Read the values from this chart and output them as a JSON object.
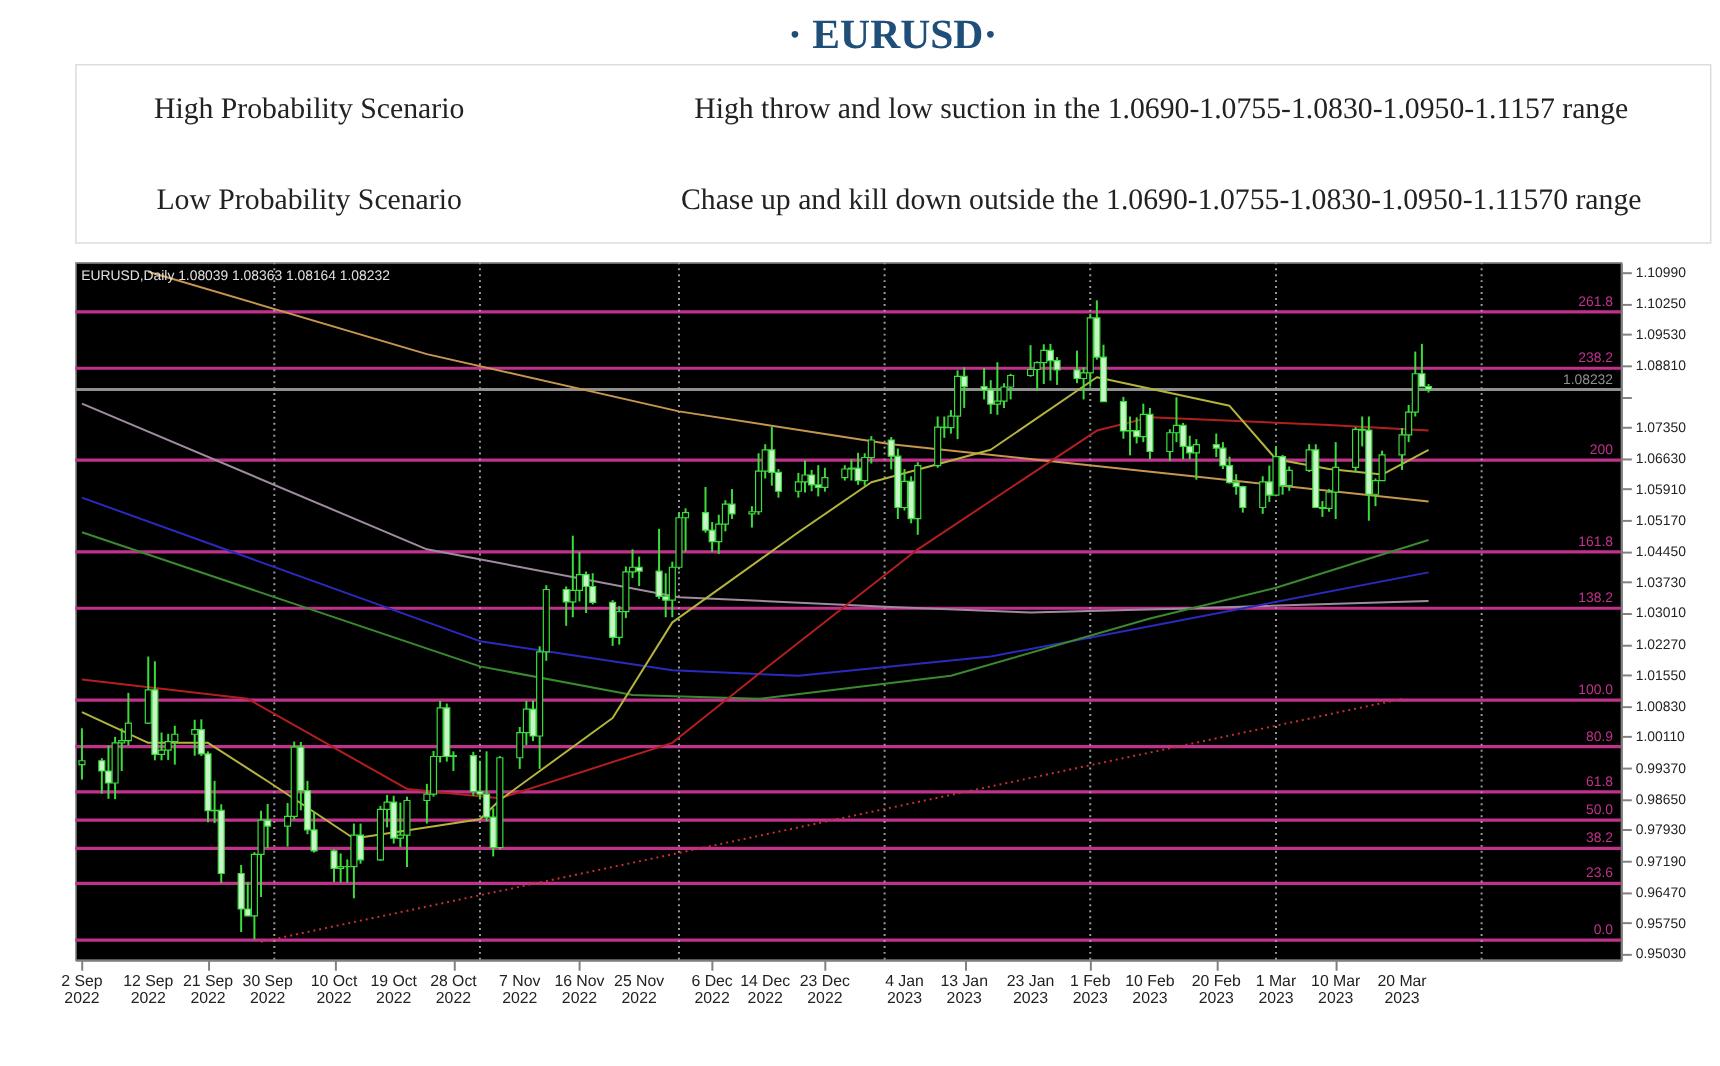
{
  "chart_data": {
    "type": "candlestick",
    "title": "· EURUSD·",
    "annotations": [
      "High Probability Scenario",
      "High throw and low suction in the 1.0690-1.0755-1.0830-1.0950-1.1157 range",
      "Low Probability Scenario",
      "Chase up and kill down outside the 1.0690-1.0755-1.0830-1.0950-1.11570 range",
      "EURUSD,Daily 1.08039 1.08363 1.08164 1.08232",
      {
        "text": "261.8",
        "y": 1.1005
      },
      {
        "text": "238.2",
        "y": 1.0873
      },
      {
        "text": "200",
        "y": 1.0658
      },
      {
        "text": "161.8",
        "y": 1.0443
      },
      {
        "text": "138.2",
        "y": 1.0311
      },
      {
        "text": "100.0",
        "y": 1.0096
      },
      {
        "text": "80.9",
        "y": 0.9987
      },
      {
        "text": "61.8",
        "y": 0.9881
      },
      {
        "text": "50.0",
        "y": 0.9815
      },
      {
        "text": "38.2",
        "y": 0.9749
      },
      {
        "text": "23.6",
        "y": 0.9667
      },
      {
        "text": "0.0",
        "y": 0.9534
      }
    ],
    "x": [
      "2022-09-02",
      "2022-09-05",
      "2022-09-06",
      "2022-09-07",
      "2022-09-08",
      "2022-09-09",
      "2022-09-12",
      "2022-09-13",
      "2022-09-14",
      "2022-09-15",
      "2022-09-16",
      "2022-09-19",
      "2022-09-20",
      "2022-09-21",
      "2022-09-22",
      "2022-09-23",
      "2022-09-26",
      "2022-09-27",
      "2022-09-28",
      "2022-09-29",
      "2022-09-30",
      "2022-10-03",
      "2022-10-04",
      "2022-10-05",
      "2022-10-06",
      "2022-10-07",
      "2022-10-10",
      "2022-10-11",
      "2022-10-12",
      "2022-10-13",
      "2022-10-14",
      "2022-10-17",
      "2022-10-18",
      "2022-10-19",
      "2022-10-20",
      "2022-10-21",
      "2022-10-24",
      "2022-10-25",
      "2022-10-26",
      "2022-10-27",
      "2022-10-28",
      "2022-10-31",
      "2022-11-01",
      "2022-11-02",
      "2022-11-03",
      "2022-11-04",
      "2022-11-07",
      "2022-11-08",
      "2022-11-09",
      "2022-11-10",
      "2022-11-11",
      "2022-11-14",
      "2022-11-15",
      "2022-11-16",
      "2022-11-17",
      "2022-11-18",
      "2022-11-21",
      "2022-11-22",
      "2022-11-23",
      "2022-11-24",
      "2022-11-25",
      "2022-11-28",
      "2022-11-29",
      "2022-11-30",
      "2022-12-01",
      "2022-12-02",
      "2022-12-05",
      "2022-12-06",
      "2022-12-07",
      "2022-12-08",
      "2022-12-09",
      "2022-12-12",
      "2022-12-13",
      "2022-12-14",
      "2022-12-15",
      "2022-12-16",
      "2022-12-19",
      "2022-12-20",
      "2022-12-21",
      "2022-12-22",
      "2022-12-23",
      "2022-12-26",
      "2022-12-27",
      "2022-12-28",
      "2022-12-29",
      "2022-12-30",
      "2023-01-02",
      "2023-01-03",
      "2023-01-04",
      "2023-01-05",
      "2023-01-06",
      "2023-01-09",
      "2023-01-10",
      "2023-01-11",
      "2023-01-12",
      "2023-01-13",
      "2023-01-16",
      "2023-01-17",
      "2023-01-18",
      "2023-01-19",
      "2023-01-20",
      "2023-01-23",
      "2023-01-24",
      "2023-01-25",
      "2023-01-26",
      "2023-01-27",
      "2023-01-30",
      "2023-01-31",
      "2023-02-01",
      "2023-02-02",
      "2023-02-03",
      "2023-02-06",
      "2023-02-07",
      "2023-02-08",
      "2023-02-09",
      "2023-02-10",
      "2023-02-13",
      "2023-02-14",
      "2023-02-15",
      "2023-02-16",
      "2023-02-17",
      "2023-02-20",
      "2023-02-21",
      "2023-02-22",
      "2023-02-23",
      "2023-02-24",
      "2023-02-27",
      "2023-02-28",
      "2023-03-01",
      "2023-03-02",
      "2023-03-03",
      "2023-03-06",
      "2023-03-07",
      "2023-03-08",
      "2023-03-09",
      "2023-03-10",
      "2023-03-13",
      "2023-03-14",
      "2023-03-15",
      "2023-03-16",
      "2023-03-17",
      "2023-03-20",
      "2023-03-21",
      "2023-03-22",
      "2023-03-23",
      "2023-03-24"
    ],
    "ohlc": [
      [
        0.9945,
        1.003,
        0.991,
        0.9954
      ],
      [
        0.9954,
        0.996,
        0.9877,
        0.993
      ],
      [
        0.993,
        0.999,
        0.9865,
        0.9902
      ],
      [
        0.9902,
        1.001,
        0.9864,
        0.9996
      ],
      [
        0.9996,
        1.003,
        0.993,
        1.0001
      ],
      [
        1.0001,
        1.0113,
        0.999,
        1.0042
      ],
      [
        1.0042,
        1.0198,
        1.004,
        1.012
      ],
      [
        1.012,
        1.0187,
        0.9955,
        0.9969
      ],
      [
        0.9969,
        1.002,
        0.9955,
        0.9979
      ],
      [
        0.9979,
        1.0017,
        0.9956,
        0.9999
      ],
      [
        0.9999,
        1.0036,
        0.9945,
        1.0016
      ],
      [
        1.0016,
        1.005,
        0.9966,
        1.0027
      ],
      [
        1.0027,
        1.0051,
        0.9965,
        0.997
      ],
      [
        0.997,
        0.9976,
        0.981,
        0.9837
      ],
      [
        0.9837,
        0.9907,
        0.9808,
        0.9838
      ],
      [
        0.9838,
        0.9852,
        0.9668,
        0.969
      ],
      [
        0.969,
        0.971,
        0.9553,
        0.9607
      ],
      [
        0.9607,
        0.967,
        0.959,
        0.9591
      ],
      [
        0.9591,
        0.974,
        0.9536,
        0.9735
      ],
      [
        0.9735,
        0.9837,
        0.9635,
        0.9815
      ],
      [
        0.9815,
        0.9853,
        0.975,
        0.9801
      ],
      [
        0.9801,
        0.9855,
        0.9753,
        0.9824
      ],
      [
        0.9824,
        0.9999,
        0.9817,
        0.9986
      ],
      [
        0.9986,
        0.9998,
        0.9838,
        0.9884
      ],
      [
        0.9884,
        0.9907,
        0.9782,
        0.9792
      ],
      [
        0.9792,
        0.9834,
        0.9739,
        0.9743
      ],
      [
        0.9743,
        0.9747,
        0.967,
        0.9702
      ],
      [
        0.9702,
        0.9737,
        0.9669,
        0.9706
      ],
      [
        0.9706,
        0.9723,
        0.9669,
        0.9706
      ],
      [
        0.9706,
        0.9807,
        0.9632,
        0.978
      ],
      [
        0.978,
        0.9807,
        0.9713,
        0.9722
      ],
      [
        0.9722,
        0.9848,
        0.972,
        0.984
      ],
      [
        0.984,
        0.9874,
        0.9798,
        0.9857
      ],
      [
        0.9857,
        0.9872,
        0.976,
        0.9773
      ],
      [
        0.9773,
        0.9856,
        0.9752,
        0.978
      ],
      [
        0.978,
        0.987,
        0.9705,
        0.9861
      ],
      [
        0.9861,
        0.99,
        0.9807,
        0.9876
      ],
      [
        0.9876,
        0.9977,
        0.987,
        0.9964
      ],
      [
        0.9964,
        1.0094,
        0.995,
        1.0078
      ],
      [
        1.0078,
        1.0088,
        0.9952,
        0.9964
      ],
      [
        0.9964,
        0.9976,
        0.993,
        0.9966
      ],
      [
        0.9966,
        0.9975,
        0.9872,
        0.9882
      ],
      [
        0.9882,
        0.9954,
        0.9864,
        0.9876
      ],
      [
        0.9876,
        0.9976,
        0.9812,
        0.9822
      ],
      [
        0.9822,
        0.9843,
        0.973,
        0.9751
      ],
      [
        0.9751,
        0.9965,
        0.9746,
        0.9961
      ],
      [
        0.9961,
        1.0033,
        0.9935,
        1.002
      ],
      [
        1.002,
        1.0094,
        0.9991,
        1.0075
      ],
      [
        1.0075,
        1.0095,
        1.0,
        1.0012
      ],
      [
        1.0012,
        1.0222,
        0.9935,
        1.0209
      ],
      [
        1.0209,
        1.0365,
        1.0188,
        1.0355
      ],
      [
        1.0355,
        1.0362,
        1.027,
        1.0326
      ],
      [
        1.0326,
        1.0481,
        1.029,
        1.0353
      ],
      [
        1.0353,
        1.0443,
        1.0327,
        1.039
      ],
      [
        1.039,
        1.0397,
        1.03,
        1.0362
      ],
      [
        1.0362,
        1.0393,
        1.032,
        1.0325
      ],
      [
        1.0325,
        1.033,
        1.0223,
        1.0243
      ],
      [
        1.0243,
        1.0316,
        1.0226,
        1.0303
      ],
      [
        1.0303,
        1.0409,
        1.0288,
        1.0396
      ],
      [
        1.0396,
        1.0449,
        1.0382,
        1.0407
      ],
      [
        1.0407,
        1.0432,
        1.0363,
        1.0398
      ],
      [
        1.0398,
        1.0497,
        1.0333,
        1.0339
      ],
      [
        1.0339,
        1.0393,
        1.029,
        1.033
      ],
      [
        1.033,
        1.042,
        1.029,
        1.0407
      ],
      [
        1.0407,
        1.0534,
        1.0402,
        1.0523
      ],
      [
        1.0523,
        1.0545,
        1.0444,
        1.0535
      ],
      [
        1.0535,
        1.0595,
        1.0488,
        1.0494
      ],
      [
        1.0494,
        1.0513,
        1.0443,
        1.0467
      ],
      [
        1.0467,
        1.053,
        1.0438,
        1.0508
      ],
      [
        1.0508,
        1.0564,
        1.0491,
        1.0555
      ],
      [
        1.0555,
        1.059,
        1.052,
        1.0532
      ],
      [
        1.0532,
        1.055,
        1.05,
        1.0537
      ],
      [
        1.0537,
        1.0674,
        1.053,
        1.0632
      ],
      [
        1.0632,
        1.0695,
        1.0615,
        1.0682
      ],
      [
        1.0682,
        1.0736,
        1.0598,
        1.0629
      ],
      [
        1.0629,
        1.0637,
        1.057,
        1.0585
      ],
      [
        1.0585,
        1.0628,
        1.057,
        1.0607
      ],
      [
        1.0607,
        1.0657,
        1.0582,
        1.0623
      ],
      [
        1.0623,
        1.0635,
        1.0585,
        1.06
      ],
      [
        1.06,
        1.0646,
        1.0573,
        1.0594
      ],
      [
        1.0594,
        1.064,
        1.0584,
        1.0617
      ],
      [
        1.0617,
        1.0646,
        1.061,
        1.0637
      ],
      [
        1.0637,
        1.066,
        1.061,
        1.0639
      ],
      [
        1.0639,
        1.0675,
        1.06,
        1.061
      ],
      [
        1.061,
        1.0674,
        1.0598,
        1.0664
      ],
      [
        1.0664,
        1.0714,
        1.065,
        1.0705
      ],
      [
        1.0705,
        1.0712,
        1.0636,
        1.0667
      ],
      [
        1.0667,
        1.0685,
        1.052,
        1.0547
      ],
      [
        1.0547,
        1.0637,
        1.054,
        1.0608
      ],
      [
        1.0608,
        1.062,
        1.051,
        1.0521
      ],
      [
        1.0521,
        1.0653,
        1.0483,
        1.0645
      ],
      [
        1.0645,
        1.076,
        1.064,
        1.0735
      ],
      [
        1.0735,
        1.076,
        1.071,
        1.0734
      ],
      [
        1.0734,
        1.0775,
        1.072,
        1.0761
      ],
      [
        1.0761,
        1.0868,
        1.0707,
        1.0854
      ],
      [
        1.0854,
        1.0875,
        1.078,
        1.083
      ],
      [
        1.083,
        1.0874,
        1.08,
        1.0822
      ],
      [
        1.0822,
        1.0845,
        1.0766,
        1.0789
      ],
      [
        1.0789,
        1.0887,
        1.0764,
        1.0796
      ],
      [
        1.0796,
        1.0838,
        1.078,
        1.0829
      ],
      [
        1.0829,
        1.086,
        1.08,
        1.0856
      ],
      [
        1.0856,
        1.0927,
        1.0853,
        1.087
      ],
      [
        1.087,
        1.0889,
        1.082,
        1.0886
      ],
      [
        1.0886,
        1.0929,
        1.0836,
        1.0915
      ],
      [
        1.0915,
        1.093,
        1.0844,
        1.0891
      ],
      [
        1.0891,
        1.0899,
        1.0834,
        1.0869
      ],
      [
        1.0869,
        1.0914,
        1.0838,
        1.0849
      ],
      [
        1.0849,
        1.0875,
        1.08,
        1.0862
      ],
      [
        1.0862,
        1.1,
        1.083,
        1.0991
      ],
      [
        1.0991,
        1.1032,
        1.0893,
        1.0899
      ],
      [
        1.0899,
        1.0928,
        1.0795,
        1.0795
      ],
      [
        1.0795,
        1.0806,
        1.0708,
        1.0726
      ],
      [
        1.0726,
        1.076,
        1.0669,
        1.0727
      ],
      [
        1.0727,
        1.0758,
        1.0697,
        1.0713
      ],
      [
        1.0713,
        1.079,
        1.07,
        1.0765
      ],
      [
        1.0765,
        1.078,
        1.066,
        1.0678
      ],
      [
        1.0678,
        1.073,
        1.0656,
        1.0722
      ],
      [
        1.0722,
        1.0805,
        1.07,
        1.0739
      ],
      [
        1.0739,
        1.0745,
        1.066,
        1.069
      ],
      [
        1.069,
        1.0715,
        1.066,
        1.0675
      ],
      [
        1.0675,
        1.0707,
        1.0612,
        1.0694
      ],
      [
        1.0694,
        1.072,
        1.0665,
        1.0686
      ],
      [
        1.0686,
        1.07,
        1.0637,
        1.0645
      ],
      [
        1.0645,
        1.0666,
        1.0603,
        1.0605
      ],
      [
        1.0605,
        1.0625,
        1.0577,
        1.0596
      ],
      [
        1.0596,
        1.0598,
        1.0535,
        1.0547
      ],
      [
        1.0547,
        1.062,
        1.0532,
        1.0607
      ],
      [
        1.0607,
        1.0645,
        1.056,
        1.0576
      ],
      [
        1.0576,
        1.0691,
        1.0573,
        1.0666
      ],
      [
        1.0666,
        1.067,
        1.0577,
        1.0598
      ],
      [
        1.0598,
        1.0643,
        1.0586,
        1.0634
      ],
      [
        1.0634,
        1.0695,
        1.063,
        1.0682
      ],
      [
        1.0682,
        1.0695,
        1.0547,
        1.0547
      ],
      [
        1.0547,
        1.0562,
        1.0525,
        1.0545
      ],
      [
        1.0545,
        1.059,
        1.0537,
        1.0583
      ],
      [
        1.0583,
        1.07,
        1.052,
        1.0641
      ],
      [
        1.0641,
        1.0735,
        1.063,
        1.073
      ],
      [
        1.073,
        1.076,
        1.069,
        1.0728
      ],
      [
        1.0728,
        1.076,
        1.0516,
        1.0578
      ],
      [
        1.0578,
        1.0615,
        1.055,
        1.061
      ],
      [
        1.061,
        1.068,
        1.061,
        1.067
      ],
      [
        1.067,
        1.0733,
        1.0635,
        1.0717
      ],
      [
        1.0717,
        1.0787,
        1.07,
        1.077
      ],
      [
        1.077,
        1.0912,
        1.076,
        1.086
      ],
      [
        1.086,
        1.093,
        1.083,
        1.083
      ],
      [
        1.083,
        1.0836,
        1.0816,
        1.0823
      ]
    ],
    "series": [
      {
        "type": "line",
        "color": "#c89650",
        "x": [
          "2022-09-12",
          "2022-10-24",
          "2022-12-01",
          "2023-01-02",
          "2023-02-14",
          "2023-03-24"
        ],
        "values": [
          1.1099,
          1.0906,
          1.0772,
          1.0695,
          1.0624,
          1.0561
        ]
      },
      {
        "type": "line",
        "color": "#a08ca0",
        "x": [
          "2022-09-02",
          "2022-10-24",
          "2022-12-01",
          "2023-01-02",
          "2023-01-23",
          "2023-02-14",
          "2023-03-24"
        ],
        "values": [
          1.079,
          1.0449,
          1.0337,
          1.0314,
          1.0301,
          1.031,
          1.0328
        ]
      },
      {
        "type": "line",
        "color": "#2a2ac0",
        "x": [
          "2022-09-02",
          "2022-11-01",
          "2022-11-30",
          "2022-12-19",
          "2023-01-17",
          "2023-02-10",
          "2023-03-24"
        ],
        "values": [
          1.057,
          1.0234,
          1.0166,
          1.0153,
          1.0198,
          1.0269,
          1.0395
        ]
      },
      {
        "type": "line",
        "color": "#3a8a30",
        "x": [
          "2022-09-02",
          "2022-11-01",
          "2022-11-24",
          "2022-12-13",
          "2023-01-11",
          "2023-02-10",
          "2023-03-01",
          "2023-03-24"
        ],
        "values": [
          1.0489,
          1.0175,
          1.0108,
          1.0099,
          1.0153,
          1.0287,
          1.0359,
          1.0471
        ]
      },
      {
        "type": "line",
        "color": "#b41e1e",
        "x": [
          "2022-09-02",
          "2022-09-27",
          "2022-10-21",
          "2022-11-04",
          "2022-11-30",
          "2022-12-13",
          "2023-01-06",
          "2023-02-02",
          "2023-02-10",
          "2023-03-09",
          "2023-03-24"
        ],
        "values": [
          1.0144,
          1.0099,
          0.9888,
          0.9866,
          0.9996,
          1.0157,
          1.0449,
          1.0727,
          1.0758,
          1.074,
          1.0727
        ]
      },
      {
        "type": "line",
        "color": "#b4b43c",
        "x": [
          "2022-09-02",
          "2022-09-12",
          "2022-09-21",
          "2022-09-30",
          "2022-10-13",
          "2022-11-01",
          "2022-11-04",
          "2022-11-21",
          "2022-11-30",
          "2022-12-19",
          "2022-12-30",
          "2023-01-17",
          "2023-02-02",
          "2023-02-22",
          "2023-03-01",
          "2023-03-09",
          "2023-03-17",
          "2023-03-24"
        ],
        "values": [
          1.0068,
          0.9996,
          0.9996,
          0.9906,
          0.9772,
          0.9817,
          0.9862,
          1.0054,
          1.0278,
          1.0489,
          1.0606,
          1.0682,
          1.0852,
          1.0785,
          1.066,
          1.0637,
          1.0624,
          1.0682
        ]
      },
      {
        "type": "line",
        "color": "#c83232",
        "line_style": "dotted",
        "x": [
          "2022-09-29",
          "2023-03-20"
        ],
        "values": [
          0.953,
          1.0099
        ]
      }
    ],
    "ref_lines": [
      {
        "axis": "y",
        "value": 1.1005,
        "color": "#c0328c"
      },
      {
        "axis": "y",
        "value": 1.0873,
        "color": "#c0328c"
      },
      {
        "axis": "y",
        "value": 1.0658,
        "color": "#c0328c"
      },
      {
        "axis": "y",
        "value": 1.0443,
        "color": "#c0328c"
      },
      {
        "axis": "y",
        "value": 1.0311,
        "color": "#c0328c"
      },
      {
        "axis": "y",
        "value": 1.0096,
        "color": "#c0328c"
      },
      {
        "axis": "y",
        "value": 0.9987,
        "color": "#c0328c"
      },
      {
        "axis": "y",
        "value": 0.9881,
        "color": "#c0328c"
      },
      {
        "axis": "y",
        "value": 0.9815,
        "color": "#c0328c"
      },
      {
        "axis": "y",
        "value": 0.9749,
        "color": "#c0328c"
      },
      {
        "axis": "y",
        "value": 0.9667,
        "color": "#c0328c"
      },
      {
        "axis": "y",
        "value": 0.9534,
        "color": "#c0328c"
      },
      {
        "axis": "y",
        "value": 1.08232,
        "label": "1.08232",
        "color": "#909090"
      },
      {
        "axis": "x",
        "value": "2022-10-01",
        "color": "#9a9a9a",
        "line_style": "dotted"
      },
      {
        "axis": "x",
        "value": "2022-11-01",
        "color": "#9a9a9a",
        "line_style": "dotted"
      },
      {
        "axis": "x",
        "value": "2022-12-01",
        "color": "#9a9a9a",
        "line_style": "dotted"
      },
      {
        "axis": "x",
        "value": "2023-01-01",
        "color": "#9a9a9a",
        "line_style": "dotted"
      },
      {
        "axis": "x",
        "value": "2023-02-01",
        "color": "#9a9a9a",
        "line_style": "dotted"
      },
      {
        "axis": "x",
        "value": "2023-03-01",
        "color": "#9a9a9a",
        "line_style": "dotted"
      },
      {
        "axis": "x",
        "value": "2023-04-01",
        "color": "#9a9a9a",
        "line_style": "dotted"
      }
    ],
    "xlim": [
      "2022-09-01",
      "2023-04-22"
    ],
    "xticks": [
      {
        "value": "2022-09-02",
        "label": "2 Sep 2022"
      },
      {
        "value": "2022-09-12",
        "label": "12 Sep 2022"
      },
      {
        "value": "2022-09-21",
        "label": "21 Sep 2022"
      },
      {
        "value": "2022-09-30",
        "label": "30 Sep 2022"
      },
      {
        "value": "2022-10-10",
        "label": "10 Oct 2022"
      },
      {
        "value": "2022-10-19",
        "label": "19 Oct 2022"
      },
      {
        "value": "2022-10-28",
        "label": "28 Oct 2022"
      },
      {
        "value": "2022-11-07",
        "label": "7 Nov 2022"
      },
      {
        "value": "2022-11-16",
        "label": "16 Nov 2022"
      },
      {
        "value": "2022-11-25",
        "label": "25 Nov 2022"
      },
      {
        "value": "2022-12-06",
        "label": "6 Dec 2022"
      },
      {
        "value": "2022-12-14",
        "label": "14 Dec 2022"
      },
      {
        "value": "2022-12-23",
        "label": "23 Dec 2022"
      },
      {
        "value": "2023-01-04",
        "label": "4 Jan 2023"
      },
      {
        "value": "2023-01-13",
        "label": "13 Jan 2023"
      },
      {
        "value": "2023-01-23",
        "label": "23 Jan 2023"
      },
      {
        "value": "2023-02-01",
        "label": "1 Feb 2023"
      },
      {
        "value": "2023-02-10",
        "label": "10 Feb 2023"
      },
      {
        "value": "2023-02-20",
        "label": "20 Feb 2023"
      },
      {
        "value": "2023-03-01",
        "label": "1 Mar 2023"
      },
      {
        "value": "2023-03-10",
        "label": "10 Mar 2023"
      },
      {
        "value": "2023-03-20",
        "label": "20 Mar 2023"
      }
    ],
    "ylim": [
      0.9488,
      1.1121
    ],
    "yticks": [
      {
        "value": 1.1099,
        "label": "1.10990"
      },
      {
        "value": 1.1025,
        "label": "1.10250"
      },
      {
        "value": 1.0953,
        "label": "1.09530"
      },
      {
        "value": 1.0881,
        "label": "1.08810"
      },
      {
        "value": 1.0807,
        "label": null
      },
      {
        "value": 1.0735,
        "label": "1.07350"
      },
      {
        "value": 1.0663,
        "label": "1.06630"
      },
      {
        "value": 1.0591,
        "label": "1.05910"
      },
      {
        "value": 1.0517,
        "label": "1.05170"
      },
      {
        "value": 1.0445,
        "label": "1.04450"
      },
      {
        "value": 1.0373,
        "label": "1.03730"
      },
      {
        "value": 1.0301,
        "label": "1.03010"
      },
      {
        "value": 1.0227,
        "label": "1.02270"
      },
      {
        "value": 1.0155,
        "label": "1.01550"
      },
      {
        "value": 1.0083,
        "label": "1.00830"
      },
      {
        "value": 1.0011,
        "label": "1.00110"
      },
      {
        "value": 0.9937,
        "label": "0.99370"
      },
      {
        "value": 0.9865,
        "label": "0.98650"
      },
      {
        "value": 0.9793,
        "label": "0.97930"
      },
      {
        "value": 0.9719,
        "label": "0.97190"
      },
      {
        "value": 0.9647,
        "label": "0.96470"
      },
      {
        "value": 0.9575,
        "label": "0.95750"
      },
      {
        "value": 0.9503,
        "label": "0.95030"
      }
    ],
    "grid": false,
    "legend": false
  }
}
